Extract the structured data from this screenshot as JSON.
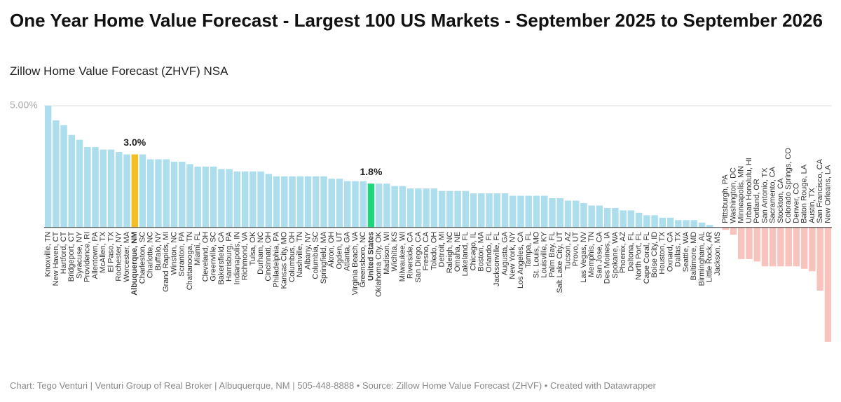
{
  "chart_data": {
    "type": "bar",
    "title": "One Year Home Value Forecast - Largest 100 US Markets - September 2025 to September 2026",
    "subtitle": "Zillow Home Value Forecast (ZHVF) NSA",
    "footer": "Chart: Tego Venturi | Venturi Group of Real Broker | Albuquerque, NM | 505-448-8888 • Source: Zillow Home Value Forecast (ZHVF) • Created with Datawrapper",
    "categories": [
      "Knoxville, TN",
      "New Haven, CT",
      "Hartford, CT",
      "Bridgeport, CT",
      "Syracuse, NY",
      "Providence, RI",
      "Allentown, PA",
      "McAllen, TX",
      "El Paso, TX",
      "Rochester, NY",
      "Worcester, MA",
      "Albuquerque, NM",
      "Charleston, SC",
      "Charlotte, NC",
      "Buffalo, NY",
      "Grand Rapids, MI",
      "Winston, NC",
      "Scranton, PA",
      "Chattanooga, TN",
      "Miami, FL",
      "Cleveland, OH",
      "Greenville, SC",
      "Bakersfield, CA",
      "Harrisburg, PA",
      "Indianapolis, IN",
      "Richmond, VA",
      "Tulsa, OK",
      "Durham, NC",
      "Cincinnati, OH",
      "Philadelphia, PA",
      "Kansas City, MO",
      "Columbus, OH",
      "Nashville, TN",
      "Albany, NY",
      "Columbia, SC",
      "Springfield, MA",
      "Akron, OH",
      "Ogden, UT",
      "Atlanta, GA",
      "Virginia Beach, VA",
      "Greensboro, NC",
      "United States",
      "Oklahoma City, OK",
      "Madison, WI",
      "Wichita, KS",
      "Milwaukee, WI",
      "Riverside, CA",
      "San Diego, CA",
      "Fresno, CA",
      "Toledo, OH",
      "Detroit, MI",
      "Raleigh, NC",
      "Omaha, NE",
      "Lakeland, FL",
      "Chicago, IL",
      "Boston, MA",
      "Orlando, FL",
      "Jacksonville, FL",
      "Augusta, GA",
      "New York, NY",
      "Los Angeles, CA",
      "Tampa, FL",
      "St. Louis, MO",
      "Louisville, KY",
      "Palm Bay, FL",
      "Salt Lake City, UT",
      "Tucson, AZ",
      "Provo, UT",
      "Las Vegas, NV",
      "Memphis, TN",
      "San Jose, CA",
      "Des Moines, IA",
      "Spokane, WA",
      "Phoenix, AZ",
      "Deltona, FL",
      "North Port, FL",
      "Cape Coral, FL",
      "Boise City, ID",
      "Houston, TX",
      "Oxnard, CA",
      "Dallas, TX",
      "Seattle, WA",
      "Baltimore, MD",
      "Birmingham, AL",
      "Little Rock, AR",
      "Jackson, MS",
      "Pittsburgh, PA",
      "Washington, DC",
      "Minneapolis, MN",
      "Urban Honolulu, HI",
      "Portland, OR",
      "San Antonio, TX",
      "Sacramento, CA",
      "Stockton, CA",
      "Colorado Springs, CO",
      "Denver, CO",
      "Baton Rouge, LA",
      "Austin, TX",
      "San Francisco, CA",
      "New Orleans, LA"
    ],
    "values": [
      5.0,
      4.4,
      4.2,
      3.8,
      3.6,
      3.3,
      3.3,
      3.2,
      3.2,
      3.1,
      3.0,
      3.0,
      3.0,
      2.8,
      2.8,
      2.8,
      2.7,
      2.7,
      2.6,
      2.5,
      2.5,
      2.5,
      2.4,
      2.4,
      2.3,
      2.3,
      2.3,
      2.3,
      2.2,
      2.1,
      2.1,
      2.1,
      2.1,
      2.1,
      2.1,
      2.1,
      2.0,
      2.0,
      1.9,
      1.9,
      1.9,
      1.8,
      1.8,
      1.8,
      1.7,
      1.7,
      1.6,
      1.6,
      1.6,
      1.6,
      1.5,
      1.5,
      1.5,
      1.5,
      1.4,
      1.4,
      1.4,
      1.4,
      1.4,
      1.3,
      1.3,
      1.3,
      1.3,
      1.3,
      1.2,
      1.2,
      1.1,
      1.1,
      1.0,
      0.9,
      0.9,
      0.8,
      0.8,
      0.7,
      0.7,
      0.6,
      0.5,
      0.5,
      0.4,
      0.4,
      0.3,
      0.3,
      0.3,
      0.2,
      0.1,
      0.0,
      -0.1,
      -0.3,
      -1.3,
      -1.3,
      -1.4,
      -1.6,
      -1.6,
      -1.6,
      -1.6,
      -1.6,
      -1.7,
      -1.8,
      -2.6,
      -4.7
    ],
    "value_labels": [
      null,
      null,
      null,
      null,
      null,
      null,
      null,
      null,
      null,
      null,
      null,
      "3.0%",
      null,
      null,
      null,
      null,
      null,
      null,
      null,
      null,
      null,
      null,
      null,
      null,
      null,
      null,
      null,
      null,
      null,
      null,
      null,
      null,
      null,
      null,
      null,
      null,
      null,
      null,
      null,
      null,
      null,
      "1.8%",
      null,
      null,
      null,
      null,
      null,
      null,
      null,
      null,
      null,
      null,
      null,
      null,
      null,
      null,
      null,
      null,
      null,
      null,
      null,
      null,
      null,
      null,
      null,
      null,
      null,
      null,
      null,
      null,
      null,
      null,
      null,
      null,
      null,
      null,
      null,
      null,
      null,
      null,
      null,
      null,
      null,
      null,
      null,
      null,
      null,
      null,
      null,
      null,
      null,
      null,
      null,
      null,
      null,
      null,
      null,
      null,
      null,
      null
    ],
    "color": "#acdeed",
    "negative_color": "#f8c3bd",
    "highlights": [
      {
        "index": 11,
        "color": "#f4bf24"
      },
      {
        "index": 41,
        "color": "#1fd57b"
      }
    ],
    "ylim": [
      -4.7,
      5.0
    ],
    "yticks": [
      {
        "value": 5,
        "label": "5.00%"
      }
    ],
    "grid": true
  }
}
